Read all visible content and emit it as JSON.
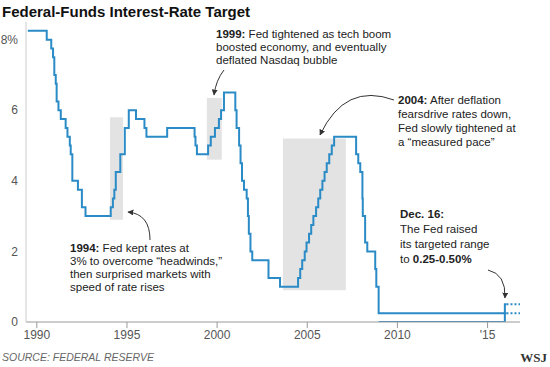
{
  "chart_data": {
    "type": "step",
    "title": "Federal-Funds Interest-Rate Target",
    "source": "SOURCE: FEDERAL RESERVE",
    "logo": "WSJ",
    "xlim": [
      1989.4,
      2016.8
    ],
    "xticks": [
      1990,
      1995,
      2000,
      2005,
      2010,
      {
        "value": 2015,
        "label": "'15"
      }
    ],
    "ylim": [
      0,
      8.5
    ],
    "yticks": [
      0,
      2,
      4,
      6,
      {
        "value": 8,
        "label": "8%"
      }
    ],
    "grid": false,
    "series": [
      {
        "color": "#2a8bc6",
        "line_style": "solid",
        "x": [
          1989.5,
          1990.55,
          1990.8,
          1990.9,
          1990.97,
          1991.05,
          1991.1,
          1991.2,
          1991.33,
          1991.6,
          1991.7,
          1991.83,
          1991.88,
          1991.97,
          1992.28,
          1992.5,
          1992.7,
          1994.1,
          1994.22,
          1994.3,
          1994.38,
          1994.63,
          1994.88,
          1995.1,
          1995.5,
          1995.97,
          1996.08,
          1997.23,
          1998.75,
          1998.8,
          1998.88,
          1999.5,
          1999.65,
          1999.88,
          2000.1,
          2000.22,
          2000.38,
          2001.01,
          2001.08,
          2001.22,
          2001.3,
          2001.38,
          2001.49,
          2001.64,
          2001.71,
          2001.76,
          2001.85,
          2001.95,
          2002.85,
          2003.49,
          2004.49,
          2004.61,
          2004.72,
          2004.86,
          2004.96,
          2005.1,
          2005.22,
          2005.34,
          2005.49,
          2005.61,
          2005.72,
          2005.84,
          2005.96,
          2006.08,
          2006.22,
          2006.36,
          2006.49,
          2007.71,
          2007.83,
          2007.94,
          2008.06,
          2008.08,
          2008.21,
          2008.33,
          2008.77,
          2008.83,
          2008.96,
          2015.96,
          2016.05
        ],
        "values": [
          8.25,
          8,
          7.75,
          7.5,
          7,
          6.75,
          6.25,
          6,
          5.75,
          5.5,
          5.25,
          5,
          4.75,
          4,
          3.75,
          3.25,
          3,
          3.25,
          3.5,
          3.75,
          4.25,
          4.75,
          5.5,
          6,
          5.75,
          5.5,
          5.25,
          5.5,
          5.25,
          5,
          4.75,
          5,
          5.25,
          5.5,
          5.75,
          6,
          6.5,
          6,
          5.5,
          5,
          4.5,
          4,
          3.75,
          3.5,
          3,
          2.5,
          2,
          1.75,
          1.25,
          1,
          1.25,
          1.5,
          1.75,
          2,
          2.25,
          2.5,
          2.75,
          3,
          3.25,
          3.5,
          3.75,
          4,
          4.25,
          4.5,
          4.75,
          5,
          5.25,
          4.75,
          4.5,
          4.25,
          3.5,
          3,
          2.25,
          2,
          1.5,
          1,
          0.25,
          0.5,
          0.5
        ]
      },
      {
        "color": "#2a8bc6",
        "line_style": "solid",
        "x": [
          2008.96,
          2015.96,
          2016.05
        ],
        "values": [
          0,
          0.25,
          0.25
        ]
      },
      {
        "color": "#2a8bc6",
        "line_style": "dotted",
        "x": [
          2016.05,
          2016.8
        ],
        "values": [
          0.5,
          0.5
        ]
      },
      {
        "color": "#2a8bc6",
        "line_style": "dotted",
        "x": [
          2016.05,
          2016.8
        ],
        "values": [
          0.25,
          0.25
        ]
      }
    ],
    "highlights": [
      {
        "x": [
          1994.06,
          1994.78
        ],
        "y": [
          2.9,
          5.8
        ]
      },
      {
        "x": [
          1999.43,
          2000.26
        ],
        "y": [
          4.6,
          6.35
        ]
      },
      {
        "x": [
          2003.65,
          2007.14
        ],
        "y": [
          0.9,
          5.2
        ]
      }
    ],
    "annotations": [
      {
        "lines": [
          "1994: Fed kept rates at",
          "3% to overcome “headwinds,”",
          "then surprised markets with",
          "speed of rate rises"
        ]
      },
      {
        "lines": [
          "1999: Fed tightened as tech boom",
          "boosted economy, and eventually",
          "deflated Nasdaq bubble"
        ]
      },
      {
        "lines": [
          "2004: After deflation",
          "fearsdrive rates down,",
          "Fed slowly tightened at",
          "a “measured pace”"
        ]
      },
      {
        "lines": [
          "Dec. 16:",
          "The Fed raised",
          "its targeted range",
          "to 0.25-0.50%"
        ],
        "emphasis": "0.25-0.50%"
      }
    ]
  }
}
